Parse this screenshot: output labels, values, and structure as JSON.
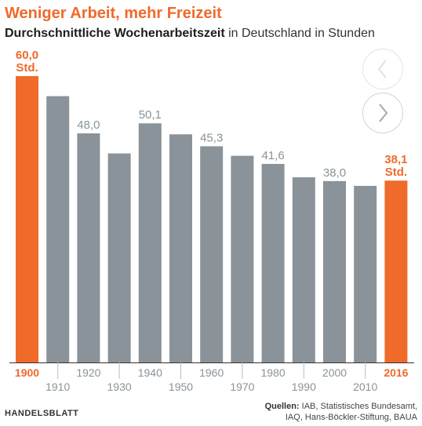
{
  "header": {
    "title": "Weniger Arbeit, mehr Freizeit",
    "subtitle_bold": "Durchschnittliche Wochenarbeitszeit",
    "subtitle_rest": " in Deutschland in Stunden"
  },
  "controls": {
    "prev_icon": "chevron-left-icon",
    "next_icon": "chevron-right-icon"
  },
  "footer": {
    "brand": "HANDELSBLATT",
    "sources_label": "Quellen:",
    "sources_line1": " IAB, Statistisches Bundesamt,",
    "sources_line2": "IAQ, Hans-Böckler-Stiftung, BAUA"
  },
  "colors": {
    "highlight": "#f06a2a",
    "bar": "#8a9399",
    "label": "#8a9399",
    "axis": "#333333"
  },
  "chart_data": {
    "type": "bar",
    "categories": [
      "1900",
      "1910",
      "1920",
      "1930",
      "1940",
      "1950",
      "1960",
      "1970",
      "1980",
      "1990",
      "2000",
      "2010",
      "2016"
    ],
    "values": [
      60.0,
      55.8,
      48.0,
      43.8,
      50.1,
      47.8,
      45.3,
      43.3,
      41.6,
      38.8,
      38.0,
      37.0,
      38.1
    ],
    "value_labels": [
      "60,0",
      "",
      "48,0",
      "",
      "50,1",
      "",
      "45,3",
      "",
      "41,6",
      "",
      "38,0",
      "",
      "38,1"
    ],
    "unit_label": "Std.",
    "highlighted": [
      0,
      12
    ],
    "ylim": [
      0,
      60
    ],
    "grid": false
  }
}
